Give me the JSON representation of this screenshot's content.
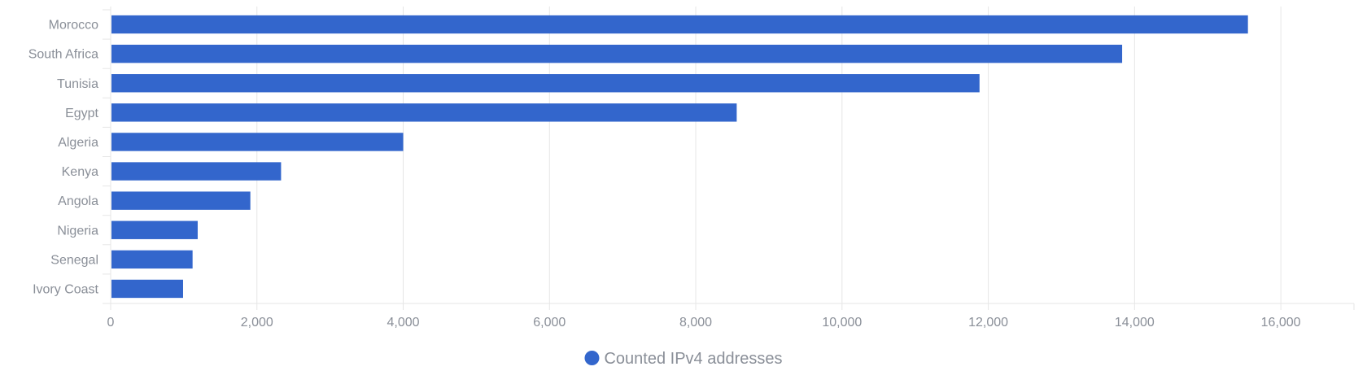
{
  "chart_data": {
    "type": "bar",
    "orientation": "horizontal",
    "categories": [
      "Morocco",
      "South Africa",
      "Tunisia",
      "Egypt",
      "Algeria",
      "Kenya",
      "Angola",
      "Nigeria",
      "Senegal",
      "Ivory Coast"
    ],
    "series": [
      {
        "name": "Counted IPv4 addresses",
        "values": [
          15550,
          13830,
          11880,
          8560,
          4000,
          2330,
          1910,
          1190,
          1120,
          990
        ]
      }
    ],
    "xlim": [
      0,
      17000
    ],
    "xticks": [
      0,
      2000,
      4000,
      6000,
      8000,
      10000,
      12000,
      14000,
      16000
    ],
    "xtick_labels": [
      "0",
      "2,000",
      "4,000",
      "6,000",
      "8,000",
      "10,000",
      "12,000",
      "14,000",
      "16,000"
    ],
    "grid": "vertical",
    "legend": "bottom-center",
    "bar_color": "#3366cc",
    "grid_color": "#e6e6e6",
    "text_color": "#8a8f98"
  }
}
